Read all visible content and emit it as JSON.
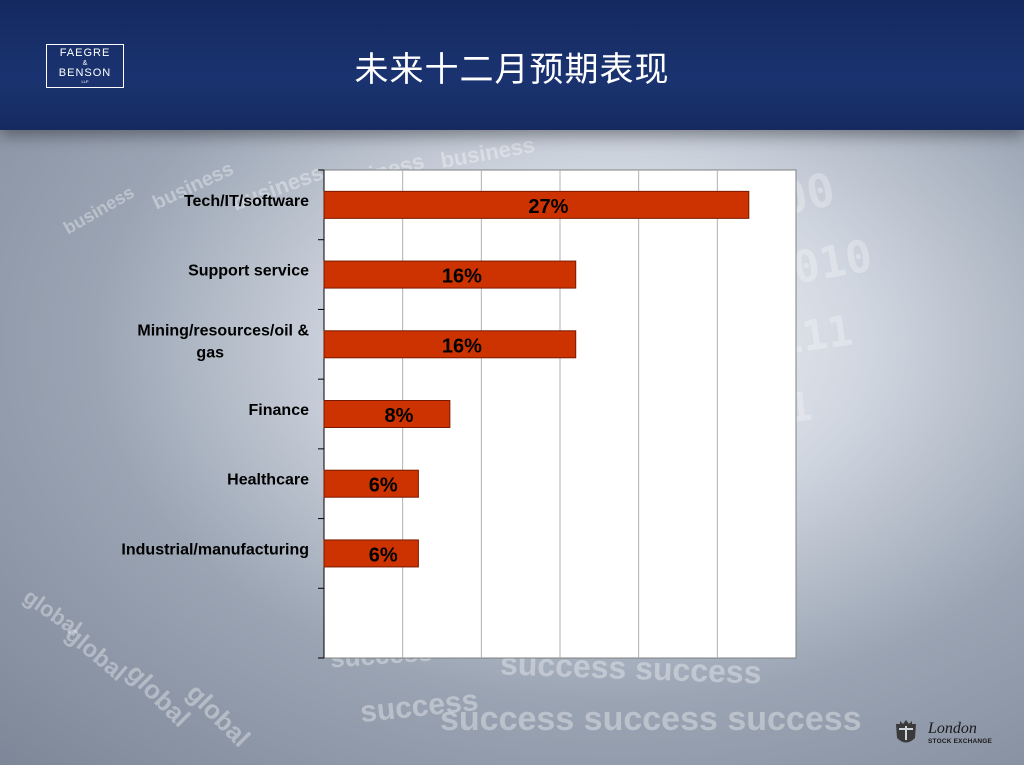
{
  "slide": {
    "title": "未来十二月预期表现",
    "logo": {
      "line1": "FAEGRE",
      "amp": "&",
      "line2": "BENSON",
      "suffix": "LLP"
    },
    "footer_logo": {
      "name": "London",
      "sub": "STOCK EXCHANGE"
    }
  },
  "colors": {
    "header": "#1a3370",
    "bar_fill": "#cc3300",
    "bar_stroke": "#7a1a00",
    "plot_bg": "#ffffff"
  },
  "chart_data": {
    "type": "bar",
    "orientation": "horizontal",
    "categories": [
      "Tech/IT/software",
      "Support service",
      "Mining/resources/oil & gas",
      "Finance",
      "Healthcare",
      "Industrial/manufacturing"
    ],
    "values": [
      27,
      16,
      16,
      8,
      6,
      6
    ],
    "data_labels": [
      "27%",
      "16%",
      "16%",
      "8%",
      "6%",
      "6%"
    ],
    "xlim": [
      0,
      30
    ],
    "x_gridlines": [
      5,
      10,
      15,
      20,
      25
    ],
    "grid": true,
    "legend": "none",
    "title": "",
    "xlabel": "",
    "ylabel": ""
  }
}
